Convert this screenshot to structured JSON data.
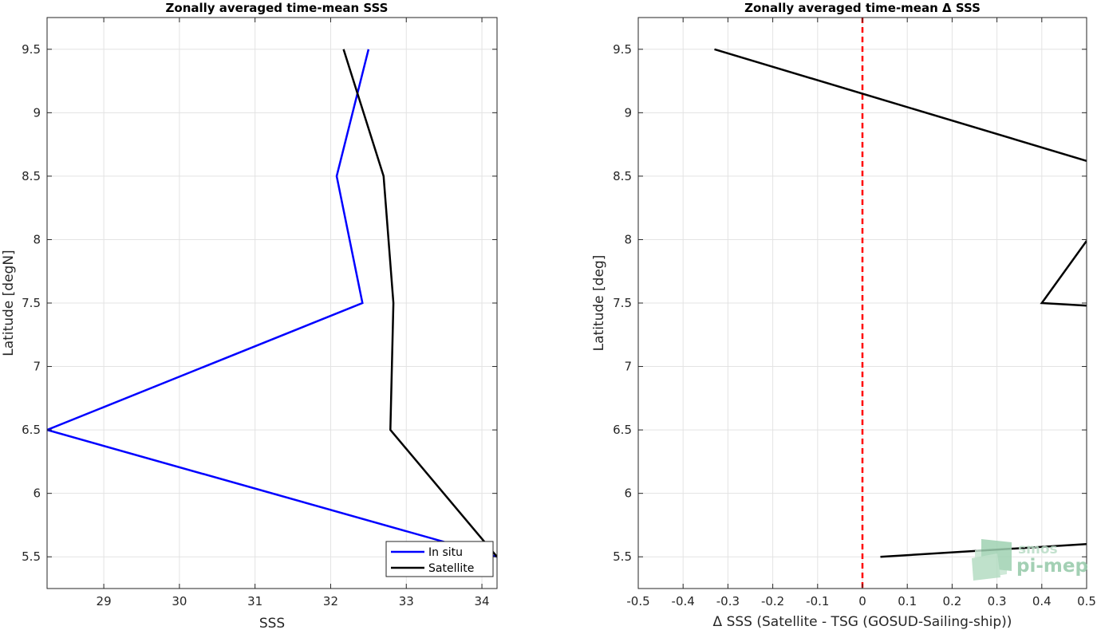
{
  "chart_data": [
    {
      "type": "line",
      "title": "Zonally averaged time-mean SSS",
      "xlabel": "SSS",
      "ylabel": "Latitude [degN]",
      "xlim": [
        28.25,
        34.2
      ],
      "ylim": [
        5.25,
        9.75
      ],
      "xticks": [
        "29",
        "30",
        "31",
        "32",
        "33",
        "34"
      ],
      "yticks": [
        "5.5",
        "6",
        "6.5",
        "7",
        "7.5",
        "8",
        "8.5",
        "9",
        "9.5"
      ],
      "grid": true,
      "legend": {
        "position": "bottom-right",
        "entries": [
          "In situ",
          "Satellite"
        ]
      },
      "series": [
        {
          "name": "In situ",
          "color": "#0000ff",
          "x": [
            32.5,
            32.08,
            32.42,
            28.25,
            34.2
          ],
          "y": [
            9.5,
            8.5,
            7.5,
            6.5,
            5.5
          ]
        },
        {
          "name": "Satellite",
          "color": "#000000",
          "x": [
            32.17,
            32.7,
            32.83,
            32.79,
            34.2
          ],
          "y": [
            9.5,
            8.5,
            7.5,
            6.5,
            5.5
          ]
        }
      ]
    },
    {
      "type": "line",
      "title": "Zonally averaged time-mean Δ SSS",
      "xlabel": "Δ SSS (Satellite - TSG (GOSUD-Sailing-ship))",
      "ylabel": "Latitude [deg]",
      "xlim": [
        -0.5,
        0.5
      ],
      "ylim": [
        5.25,
        9.75
      ],
      "xticks": [
        "-0.5",
        "-0.4",
        "-0.3",
        "-0.2",
        "-0.1",
        "0",
        "0.1",
        "0.2",
        "0.3",
        "0.4",
        "0.5"
      ],
      "yticks": [
        "5.5",
        "6",
        "6.5",
        "7",
        "7.5",
        "8",
        "8.5",
        "9",
        "9.5"
      ],
      "grid": true,
      "reference_line": {
        "x": 0,
        "color": "#ff0000",
        "style": "dashed"
      },
      "series": [
        {
          "color": "#000000",
          "x": [
            -0.33,
            0.5,
            null,
            0.5,
            0.4,
            0.5,
            null,
            0.04,
            0.5
          ],
          "y": [
            9.5,
            8.62,
            null,
            7.99,
            7.5,
            7.48,
            null,
            5.5,
            5.6
          ]
        }
      ]
    }
  ],
  "watermark": {
    "line1": "smos",
    "line2": "pi-mep"
  }
}
